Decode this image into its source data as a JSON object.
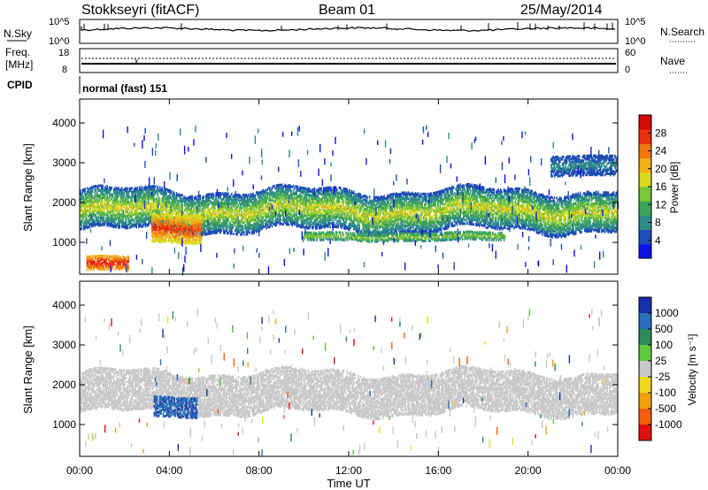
{
  "header": {
    "station": "Stokkseyri (fitACF)",
    "beam": "Beam 01",
    "date": "25/May/2014"
  },
  "status_panels": {
    "nsky": {
      "label": "N.Sky",
      "right_label": "N.Search",
      "ticks_left": [
        "10^5",
        "10^0"
      ],
      "ticks_right": [
        "10^5",
        "10^0"
      ]
    },
    "freq": {
      "label_line1": "Freq.",
      "label_line2": "[MHz]",
      "right_label": "Nave",
      "ticks_left": [
        "18",
        "8"
      ],
      "ticks_right": [
        "60",
        "0"
      ]
    },
    "cpid": {
      "label": "CPID",
      "value": "normal (fast) 151"
    }
  },
  "chart_data": [
    {
      "type": "heatmap",
      "name": "power",
      "ylabel": "Slant Range [km]",
      "xlabel": "Time UT",
      "xlim": [
        0,
        24
      ],
      "ylim": [
        200,
        4600
      ],
      "x_ticks": [
        "00:00",
        "04:00",
        "08:00",
        "12:00",
        "16:00",
        "20:00",
        "00:00"
      ],
      "y_ticks": [
        1000,
        2000,
        3000,
        4000
      ],
      "colorbar": {
        "label": "Power [dB]",
        "ticks": [
          4,
          8,
          12,
          16,
          20,
          24,
          28
        ],
        "colors": [
          "#1010e6",
          "#1e4fb4",
          "#2f8a8a",
          "#3ea35a",
          "#7cc43a",
          "#d8d820",
          "#f0b018",
          "#f07810",
          "#e83010",
          "#d20a0a"
        ]
      },
      "features": [
        {
          "name": "main band",
          "t_start": 0,
          "t_end": 24,
          "range_km": [
            1300,
            2300
          ],
          "power_db": [
            4,
            20
          ]
        },
        {
          "name": "near range patch",
          "t_start": 0.3,
          "t_end": 2.2,
          "range_km": [
            300,
            650
          ],
          "power_db": [
            20,
            28
          ]
        },
        {
          "name": "enhanced patch",
          "t_start": 3.2,
          "t_end": 5.4,
          "range_km": [
            1000,
            1700
          ],
          "power_db": [
            16,
            28
          ]
        },
        {
          "name": "lower band",
          "t_start": 10,
          "t_end": 19,
          "range_km": [
            1050,
            1250
          ],
          "power_db": [
            8,
            16
          ]
        },
        {
          "name": "far range echoes",
          "t_start": 21,
          "t_end": 24,
          "range_km": [
            2700,
            3200
          ],
          "power_db": [
            4,
            8
          ]
        }
      ]
    },
    {
      "type": "heatmap",
      "name": "velocity",
      "ylabel": "Slant Range [km]",
      "xlabel": "Time UT",
      "xlim": [
        0,
        24
      ],
      "ylim": [
        200,
        4600
      ],
      "x_ticks": [
        "00:00",
        "04:00",
        "08:00",
        "12:00",
        "16:00",
        "20:00",
        "00:00"
      ],
      "y_ticks": [
        1000,
        2000,
        3000,
        4000
      ],
      "colorbar": {
        "label": "Velocity [m s⁻¹]",
        "ticks": [
          1000,
          500,
          100,
          25,
          -25,
          -100,
          -500,
          -1000
        ],
        "colors": [
          "#1a2fa8",
          "#2a6db8",
          "#2e8a5a",
          "#5ec840",
          "#c8c8c8",
          "#f0d820",
          "#f0a010",
          "#f06010",
          "#e01010"
        ]
      },
      "features": [
        {
          "name": "main band",
          "t_start": 0,
          "t_end": 24,
          "range_km": [
            1300,
            2300
          ],
          "velocity": "low (|v|<25)"
        },
        {
          "name": "toward patch",
          "t_start": 3.3,
          "t_end": 5.2,
          "range_km": [
            1200,
            1700
          ],
          "velocity": "100 to 500"
        }
      ]
    }
  ]
}
